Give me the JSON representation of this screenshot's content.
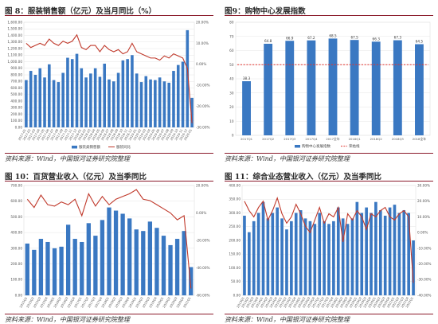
{
  "panels": [
    {
      "title": "图 8：服装销售额（亿元）及当月同比（%）",
      "source": "资料来源：Wind，中国银河证券研究院整理"
    },
    {
      "title": "图9：购物中心发展指数",
      "source": "资料来源：Wind，中国银河证券研究院整理"
    },
    {
      "title": "图 10：百货营业收入（亿元）及当季同比",
      "source": "资料来源：Wind，中国银河证券研究院整理"
    },
    {
      "title": "图 11：综合业态营业收入（亿元）及当季同比",
      "source": "资料来源：Wind，中国银河证券研究院整理"
    }
  ],
  "colors": {
    "bar": "#3a78c2",
    "line": "#c0392b",
    "ref": "#e0342f",
    "grid": "#e6e6e6",
    "rule": "#8b1a2a"
  },
  "chart_data": [
    {
      "type": "bar",
      "title": "",
      "categories": [
        "2017-01",
        "2017-02",
        "2017-03",
        "2017-04",
        "2017-05",
        "2017-06",
        "2017-07",
        "2017-08",
        "2017-09",
        "2017-10",
        "2017-11",
        "2017-12",
        "2018-01",
        "2018-02",
        "2018-03",
        "2018-04",
        "2018-05",
        "2018-06",
        "2018-07",
        "2018-08",
        "2018-09",
        "2018-10",
        "2018-11",
        "2018-12",
        "2019-01",
        "2019-02",
        "2019-03",
        "2019-04",
        "2019-05",
        "2019-06",
        "2019-07",
        "2019-08",
        "2019-09",
        "2019-10",
        "2019-11",
        "2019-12",
        "2020-01"
      ],
      "series": [
        {
          "name": "服装类销售额",
          "kind": "bar",
          "axis": "left",
          "values": [
            720,
            860,
            800,
            900,
            760,
            960,
            720,
            690,
            830,
            1060,
            1040,
            1120,
            900,
            760,
            820,
            900,
            770,
            970,
            730,
            700,
            830,
            1020,
            1040,
            1100,
            820,
            690,
            780,
            730,
            720,
            760,
            700,
            680,
            860,
            950,
            1000,
            1480,
            450
          ]
        },
        {
          "name": "服装同比",
          "kind": "line",
          "axis": "right",
          "values": [
            10,
            8,
            9,
            10,
            9,
            12,
            10,
            9,
            11,
            10,
            11,
            14,
            8,
            7,
            9,
            9,
            6,
            9,
            7,
            6,
            7,
            5,
            6,
            10,
            6,
            5,
            4,
            3,
            3,
            2,
            4,
            3,
            5,
            4,
            3,
            -2,
            -28
          ]
        }
      ],
      "yleft": {
        "min": 0,
        "max": 1600,
        "step": 100,
        "ticks": [
          "0.00",
          "100.00",
          "200.00",
          "300.00",
          "400.00",
          "500.00",
          "600.00",
          "700.00",
          "800.00",
          "900.00",
          "1,000.00",
          "1,100.00",
          "1,200.00",
          "1,300.00",
          "1,400.00",
          "1,500.00",
          "1,600.00"
        ]
      },
      "yright": {
        "min": -30,
        "max": 20,
        "step": 10,
        "ticks": [
          "-30.00%",
          "-20.00%",
          "-10.00%",
          "0.00%",
          "10.00%",
          "20.00%"
        ]
      },
      "legend_position": "bottom",
      "grid": true
    },
    {
      "type": "bar",
      "title": "",
      "categories": [
        "2017Q1",
        "2017Q2",
        "2017Q3",
        "2017Q4",
        "2017全年",
        "2018Q1",
        "2018Q2",
        "2018Q3",
        "2018全年"
      ],
      "values": [
        38.3,
        64.8,
        66.9,
        67.2,
        68.5,
        67.5,
        66.3,
        67.3,
        64.5
      ],
      "value_labels": [
        "38.3",
        "64.8",
        "66.9",
        "67.2",
        "68.5",
        "67.5",
        "66.3",
        "67.3",
        "64.5"
      ],
      "ref_line": 50,
      "series": [
        {
          "name": "购物中心发展指数"
        },
        {
          "name": "荣枯线"
        }
      ],
      "yleft": {
        "min": 0,
        "max": 80,
        "step": 10,
        "ticks": [
          "0",
          "10",
          "20",
          "30",
          "40",
          "50",
          "60",
          "70",
          "80"
        ]
      },
      "legend_position": "bottom",
      "grid": true
    },
    {
      "type": "bar",
      "title": "",
      "categories": [
        "2015Q1",
        "2015Q2",
        "2015Q3",
        "2015Q4",
        "2016Q1",
        "2016Q2",
        "2016Q3",
        "2016Q4",
        "2017Q1",
        "2017Q2",
        "2017Q3",
        "2017Q4",
        "2018Q1",
        "2018Q2",
        "2018Q3",
        "2018Q4",
        "2019Q1",
        "2019Q2",
        "2019Q3",
        "2019Q4",
        "2020Q1",
        "2020Q2",
        "2020Q3",
        "2020Q4",
        "2021Q1"
      ],
      "series": [
        {
          "name": "百货营业收入",
          "kind": "bar",
          "axis": "left",
          "values": [
            330,
            290,
            360,
            340,
            300,
            310,
            450,
            360,
            340,
            460,
            380,
            480,
            560,
            540,
            520,
            490,
            420,
            410,
            470,
            430,
            380,
            320,
            360,
            410,
            180
          ]
        },
        {
          "name": "百货同比",
          "kind": "line",
          "axis": "right",
          "values": [
            10,
            4,
            13,
            6,
            5,
            8,
            6,
            10,
            -2,
            14,
            5,
            12,
            6,
            10,
            12,
            14,
            17,
            10,
            9,
            6,
            3,
            0,
            -5,
            -2,
            -55
          ]
        }
      ],
      "yleft": {
        "min": 0,
        "max": 700,
        "step": 100,
        "ticks": [
          "0.00",
          "100.00",
          "200.00",
          "300.00",
          "400.00",
          "500.00",
          "600.00",
          "700.00"
        ]
      },
      "yright": {
        "min": -60,
        "max": 20,
        "step": 20,
        "ticks": [
          "-60.00%",
          "-40.00%",
          "-20.00%",
          "0.00%",
          "20.00%"
        ]
      },
      "grid": true
    },
    {
      "type": "bar",
      "title": "",
      "categories": [
        "2013Q1",
        "2013Q2",
        "2013Q3",
        "2013Q4",
        "2014Q1",
        "2014Q2",
        "2014Q3",
        "2014Q4",
        "2015Q1",
        "2015Q2",
        "2015Q3",
        "2015Q4",
        "2016Q1",
        "2016Q2",
        "2016Q3",
        "2016Q4",
        "2017Q1",
        "2017Q2",
        "2017Q3",
        "2017Q4",
        "2018Q1",
        "2018Q2",
        "2018Q3",
        "2018Q4",
        "2019Q1",
        "2019Q2",
        "2019Q3",
        "2019Q4",
        "2020Q1",
        "2020Q2",
        "2020Q3",
        "2020Q4",
        "2021Q1",
        "2021Q2",
        "2021Q3",
        "2021Q4",
        "2022Q1"
      ],
      "series": [
        {
          "name": "综合业态营业收入",
          "kind": "bar",
          "axis": "left",
          "values": [
            290,
            230,
            270,
            300,
            340,
            280,
            300,
            320,
            280,
            240,
            270,
            300,
            310,
            280,
            270,
            260,
            300,
            270,
            260,
            270,
            320,
            280,
            260,
            280,
            340,
            300,
            320,
            300,
            340,
            310,
            290,
            320,
            330,
            300,
            310,
            300,
            200
          ]
        },
        {
          "name": "综合业态同比",
          "kind": "line",
          "axis": "right",
          "values": [
            20,
            14,
            10,
            16,
            20,
            8,
            14,
            22,
            12,
            6,
            10,
            18,
            12,
            4,
            0,
            8,
            16,
            6,
            12,
            10,
            16,
            -6,
            12,
            8,
            14,
            10,
            2,
            12,
            10,
            14,
            16,
            10,
            8,
            12,
            14,
            10,
            -32
          ]
        }
      ],
      "yleft": {
        "min": 0,
        "max": 400,
        "step": 50,
        "ticks": [
          "0.00",
          "50.00",
          "100.00",
          "150.00",
          "200.00",
          "250.00",
          "300.00",
          "350.00",
          "400.00"
        ]
      },
      "yright": {
        "min": -40,
        "max": 30,
        "step": 10,
        "ticks": [
          "-40.00%",
          "-30.00%",
          "-20.00%",
          "-10.00%",
          "0.00%",
          "10.00%",
          "20.00%",
          "30.00%"
        ]
      },
      "grid": true
    }
  ]
}
